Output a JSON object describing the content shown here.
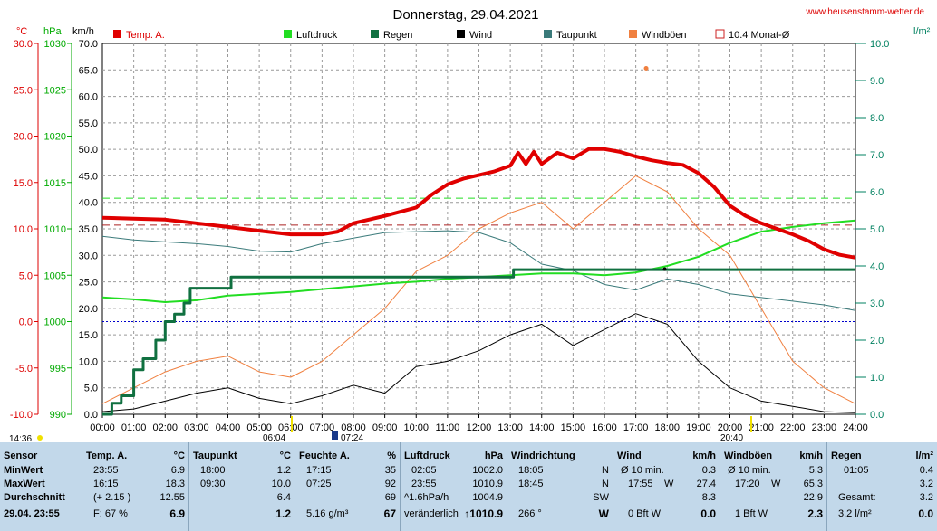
{
  "header": {
    "title": "Donnerstag, 29.04.2021",
    "site": "www.heusenstamm-wetter.de"
  },
  "axes": {
    "units": [
      "°C",
      "hPa",
      "km/h"
    ],
    "unit_right": "l/m²",
    "temp_ticks": [
      "30.0",
      "25.0",
      "20.0",
      "15.0",
      "10.0",
      "5.0",
      "0.0",
      "-5.0",
      "-10.0"
    ],
    "hpa_ticks": [
      "1030",
      "1025",
      "1020",
      "1015",
      "1010",
      "1005",
      "1000",
      "995",
      "990"
    ],
    "kmh_ticks": [
      "70.0",
      "65.0",
      "60.0",
      "55.0",
      "50.0",
      "45.0",
      "40.0",
      "35.0",
      "30.0",
      "25.0",
      "20.0",
      "15.0",
      "10.0",
      "5.0",
      "0.0"
    ],
    "rain_ticks": [
      "10.0",
      "9.0",
      "8.0",
      "7.0",
      "6.0",
      "5.0",
      "4.0",
      "3.0",
      "2.0",
      "1.0",
      "0.0"
    ],
    "time_ticks": [
      "00:00",
      "01:00",
      "02:00",
      "03:00",
      "04:00",
      "05:00",
      "06:00",
      "07:00",
      "08:00",
      "09:00",
      "10:00",
      "11:00",
      "12:00",
      "13:00",
      "14:00",
      "15:00",
      "16:00",
      "17:00",
      "18:00",
      "19:00",
      "20:00",
      "21:00",
      "22:00",
      "23:00",
      "24:00"
    ],
    "markers": [
      "14:36",
      "06:04",
      "07:24",
      "20:40"
    ]
  },
  "legend": [
    {
      "label": "Temp. A.",
      "color": "#e00000"
    },
    {
      "label": "",
      "color": "#ffffff"
    },
    {
      "label": "Luftdruck",
      "color": "#22dd22"
    },
    {
      "label": "Regen",
      "color": "#107040"
    },
    {
      "label": "Wind",
      "color": "#000000"
    },
    {
      "label": "Taupunkt",
      "color": "#3a7a7a"
    },
    {
      "label": "Windböen",
      "color": "#f08040"
    },
    {
      "label": "10.4 Monat-Ø",
      "color": "#cc2222"
    }
  ],
  "colors": {
    "temp": "#e00000",
    "pressure": "#22dd22",
    "rain": "#107040",
    "wind": "#000000",
    "dew": "#3a7a7a",
    "gust": "#f08040",
    "month_avg": "#aa2222",
    "grid": "#999999",
    "axis_temp": "#dd0000",
    "axis_hpa": "#00aa00",
    "axis_rain": "#008060",
    "stats_bg": "#c2d8ea"
  },
  "chart_data": {
    "type": "line",
    "title": "Donnerstag, 29.04.2021",
    "x_unit": "hour",
    "xlim": [
      0,
      24
    ],
    "ylim_temp": [
      -10,
      30
    ],
    "ylim_hpa": [
      990,
      1030
    ],
    "ylim_kmh": [
      0,
      70
    ],
    "ylim_rain": [
      0,
      10
    ],
    "month_avg_temp": 10.4,
    "ref_lines_hpa": [
      1013.3
    ],
    "ref_lines_temp": [
      0
    ],
    "series": [
      {
        "name": "Temp. A.",
        "axis": "temp",
        "x": [
          0,
          1,
          2,
          3,
          4,
          5,
          5.5,
          6,
          7,
          7.5,
          8,
          9,
          10,
          10.5,
          11,
          11.5,
          12,
          12.5,
          13,
          13.25,
          13.5,
          13.75,
          14,
          14.5,
          15,
          15.5,
          16,
          16.5,
          17,
          17.5,
          18,
          18.5,
          19,
          19.5,
          20,
          20.5,
          21,
          21.5,
          22,
          22.5,
          23,
          23.5,
          24
        ],
        "values": [
          11.2,
          11.1,
          11.0,
          10.6,
          10.2,
          9.8,
          9.6,
          9.4,
          9.4,
          9.7,
          10.6,
          11.4,
          12.3,
          13.7,
          14.8,
          15.4,
          15.8,
          16.2,
          16.8,
          18.2,
          17.0,
          18.3,
          17.0,
          18.2,
          17.6,
          18.6,
          18.6,
          18.3,
          17.8,
          17.4,
          17.1,
          16.9,
          16.0,
          14.5,
          12.5,
          11.4,
          10.6,
          10.0,
          9.4,
          8.7,
          7.8,
          7.2,
          6.9
        ]
      },
      {
        "name": "Luftdruck",
        "axis": "hpa",
        "x": [
          0,
          1,
          2,
          3,
          4,
          5,
          6,
          7,
          8,
          9,
          10,
          11,
          12,
          13,
          14,
          15,
          16,
          17,
          18,
          19,
          20,
          21,
          22,
          23,
          24
        ],
        "values": [
          1002.6,
          1002.4,
          1002.1,
          1002.3,
          1002.8,
          1003.0,
          1003.2,
          1003.5,
          1003.8,
          1004.1,
          1004.3,
          1004.6,
          1004.8,
          1005.0,
          1005.2,
          1005.2,
          1005.0,
          1005.3,
          1006.0,
          1007.0,
          1008.5,
          1009.7,
          1010.2,
          1010.6,
          1010.9
        ]
      },
      {
        "name": "Taupunkt",
        "axis": "temp",
        "x": [
          0,
          1,
          2,
          3,
          4,
          5,
          6,
          7,
          8,
          9,
          10,
          11,
          12,
          13,
          14,
          15,
          16,
          17,
          18,
          19,
          20,
          21,
          22,
          23,
          24
        ],
        "values": [
          9.2,
          8.8,
          8.6,
          8.4,
          8.1,
          7.6,
          7.5,
          8.4,
          9.0,
          9.6,
          9.7,
          9.8,
          9.6,
          8.5,
          6.2,
          5.5,
          4.0,
          3.4,
          4.6,
          4.0,
          3.0,
          2.6,
          2.2,
          1.8,
          1.2
        ]
      },
      {
        "name": "Regen",
        "axis": "rain",
        "x": [
          0,
          0.3,
          0.6,
          1,
          1.3,
          1.7,
          2,
          2.3,
          2.6,
          2.8,
          3,
          4,
          4.1,
          13,
          13.1,
          24
        ],
        "values": [
          0,
          0.3,
          0.5,
          1.2,
          1.5,
          2.0,
          2.5,
          2.7,
          3.0,
          3.4,
          3.4,
          3.4,
          3.7,
          3.7,
          3.9,
          3.9
        ]
      },
      {
        "name": "Wind",
        "axis": "kmh",
        "x": [
          0,
          1,
          2,
          3,
          4,
          5,
          6,
          7,
          8,
          9,
          10,
          11,
          12,
          13,
          14,
          15,
          16,
          17,
          18,
          19,
          20,
          21,
          22,
          23,
          24
        ],
        "values": [
          0.5,
          1.0,
          2.5,
          4.0,
          5.0,
          3.0,
          2.0,
          3.5,
          5.5,
          4.0,
          9.0,
          10.0,
          12.0,
          15.0,
          17.0,
          13.0,
          16.0,
          19.0,
          17.0,
          10.0,
          5.0,
          2.5,
          1.5,
          0.5,
          0.3
        ]
      },
      {
        "name": "Windböen",
        "axis": "kmh",
        "x": [
          0,
          1,
          2,
          3,
          4,
          5,
          6,
          7,
          8,
          9,
          10,
          11,
          12,
          13,
          14,
          15,
          16,
          17,
          18,
          19,
          20,
          21,
          22,
          23,
          24
        ],
        "values": [
          2.0,
          5.0,
          8.0,
          10.0,
          11.0,
          8.0,
          7.0,
          10.0,
          15.0,
          20.0,
          27.0,
          30.0,
          35.0,
          38.0,
          40.0,
          35.0,
          40.0,
          45.0,
          42.0,
          35.0,
          30.0,
          20.0,
          10.0,
          5.0,
          2.0
        ]
      }
    ],
    "extrema": {
      "wind_max": {
        "time": 17.92,
        "value": 27.4
      },
      "gust_max": {
        "time": 17.33,
        "value": 65.3
      }
    }
  },
  "stats": {
    "row_labels": [
      "Sensor",
      "MinWert",
      "MaxWert",
      "Durchschnitt",
      "29.04. 23:55"
    ],
    "temp": {
      "header": "Temp. A.",
      "unit": "°C",
      "min": [
        "23:55",
        "6.9"
      ],
      "max": [
        "16:15",
        "18.3"
      ],
      "avg": [
        "(+ 2.15 )",
        "12.55"
      ],
      "now": [
        "F: 67 %",
        "6.9"
      ]
    },
    "dew": {
      "header": "Taupunkt",
      "unit": "°C",
      "min": [
        "18:00",
        "1.2"
      ],
      "max": [
        "09:30",
        "10.0"
      ],
      "avg": [
        "",
        "6.4"
      ],
      "now": [
        "",
        "1.2"
      ]
    },
    "hum": {
      "header": "Feuchte A.",
      "unit": "%",
      "min": [
        "17:15",
        "35"
      ],
      "max": [
        "07:25",
        "92"
      ],
      "avg": [
        "",
        "69"
      ],
      "now": [
        "5.16 g/m³",
        "67"
      ]
    },
    "press": {
      "header": "Luftdruck",
      "unit": "hPa",
      "min": [
        "02:05",
        "1002.0"
      ],
      "max": [
        "23:55",
        "1010.9"
      ],
      "avg": [
        "^1.6hPa/h",
        "1004.9"
      ],
      "now": [
        "veränderlich",
        "↑1010.9"
      ]
    },
    "wdir": {
      "header": "Windrichtung",
      "min": [
        "18:05",
        "N"
      ],
      "max": [
        "18:45",
        "N"
      ],
      "avg": [
        "",
        "SW"
      ],
      "now": [
        "266 °",
        "W"
      ]
    },
    "wind": {
      "header": "Wind",
      "unit": "km/h",
      "min": [
        "Ø 10 min.",
        "",
        "0.3"
      ],
      "max": [
        "17:55",
        "W",
        "27.4"
      ],
      "avg": [
        "",
        "",
        "8.3"
      ],
      "now": [
        "0 Bft W",
        "",
        "0.0"
      ]
    },
    "gust": {
      "header": "Windböen",
      "unit": "km/h",
      "min": [
        "Ø 10 min.",
        "",
        "5.3"
      ],
      "max": [
        "17:20",
        "W",
        "65.3"
      ],
      "avg": [
        "",
        "",
        "22.9"
      ],
      "now": [
        "1 Bft W",
        "",
        "2.3"
      ]
    },
    "rain": {
      "header": "Regen",
      "unit": "l/m²",
      "min": [
        "01:05",
        "0.4"
      ],
      "max": [
        "",
        "3.2"
      ],
      "avg": [
        "Gesamt:",
        "3.2"
      ],
      "now": [
        "3.2 l/m²",
        "0.0"
      ]
    }
  }
}
